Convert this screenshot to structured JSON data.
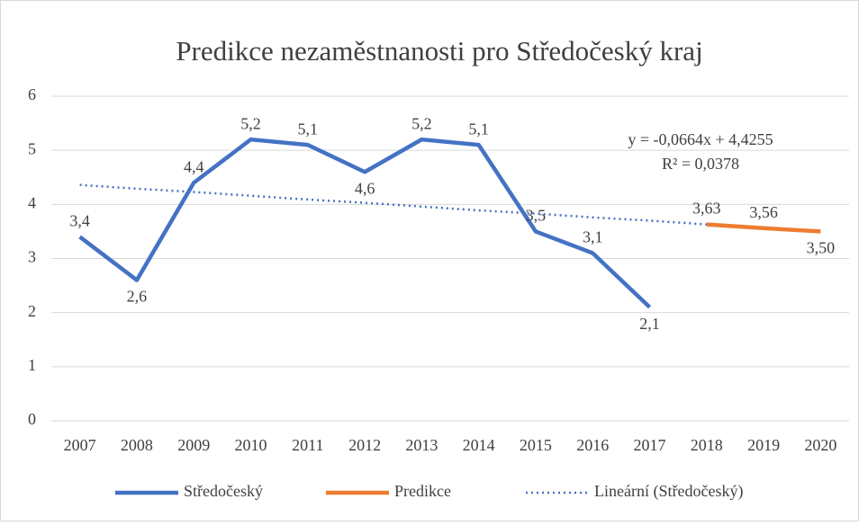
{
  "chart_data": {
    "type": "line",
    "title": "Predikce nezaměstnanosti pro Středočeský kraj",
    "categories": [
      "2007",
      "2008",
      "2009",
      "2010",
      "2011",
      "2012",
      "2013",
      "2014",
      "2015",
      "2016",
      "2017",
      "2018",
      "2019",
      "2020"
    ],
    "series": [
      {
        "name": "Středočeský",
        "color": "#4472c4",
        "style": "solid",
        "values": [
          3.4,
          2.6,
          4.4,
          5.2,
          5.1,
          4.6,
          5.2,
          5.1,
          3.5,
          3.1,
          2.1,
          null,
          null,
          null
        ],
        "value_labels": [
          "3,4",
          "2,6",
          "4,4",
          "5,2",
          "5,1",
          "4,6",
          "5,2",
          "5,1",
          "3,5",
          "3,1",
          "2,1",
          null,
          null,
          null
        ]
      },
      {
        "name": "Predikce",
        "color": "#ed7d31",
        "style": "solid",
        "values": [
          null,
          null,
          null,
          null,
          null,
          null,
          null,
          null,
          null,
          null,
          null,
          3.63,
          3.56,
          3.5
        ],
        "value_labels": [
          null,
          null,
          null,
          null,
          null,
          null,
          null,
          null,
          null,
          null,
          null,
          "3,63",
          "3,56",
          "3,50"
        ]
      },
      {
        "name": "Lineární (Středočeský)",
        "color": "#4472c4",
        "style": "dotted",
        "values": [
          4.36,
          4.29,
          4.23,
          4.16,
          4.09,
          4.03,
          3.96,
          3.89,
          3.83,
          3.76,
          3.7,
          3.63,
          null,
          null
        ]
      }
    ],
    "annotations": [
      "y = -0,0664x + 4,4255",
      "R² = 0,0378"
    ],
    "ylim": [
      0,
      6
    ],
    "yticks": [
      0,
      1,
      2,
      3,
      4,
      5,
      6
    ],
    "grid": true,
    "legend": "bottom"
  }
}
